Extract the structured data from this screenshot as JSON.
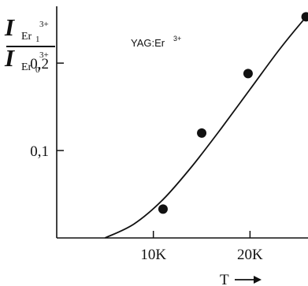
{
  "chart_data": {
    "type": "scatter",
    "title": "",
    "annotation": {
      "label": "YAG:Er",
      "superscript": "3+"
    },
    "xlabel": "T",
    "ylabel": {
      "numerator": {
        "symbol": "I",
        "sub": "Er",
        "sub_index": "1",
        "sup": "3+"
      },
      "denominator": {
        "symbol": "I",
        "sub": "Er",
        "sub_index": "0",
        "sup": "3+"
      }
    },
    "x_unit": "K",
    "x_ticks": [
      {
        "value": 10,
        "label": "10K"
      },
      {
        "value": 20,
        "label": "20K"
      }
    ],
    "y_ticks": [
      {
        "value": 0.1,
        "label": "0,1"
      },
      {
        "value": 0.2,
        "label": "0,2"
      }
    ],
    "xlim": [
      0,
      26
    ],
    "ylim": [
      0,
      0.265
    ],
    "grid": false,
    "series": [
      {
        "type": "scatter",
        "points": [
          {
            "x": 11.0,
            "y": 0.033
          },
          {
            "x": 15.0,
            "y": 0.12
          },
          {
            "x": 19.8,
            "y": 0.188
          },
          {
            "x": 25.8,
            "y": 0.253
          }
        ]
      },
      {
        "type": "line",
        "points": [
          {
            "x": 5.0,
            "y": 0.0
          },
          {
            "x": 8.0,
            "y": 0.016
          },
          {
            "x": 11.0,
            "y": 0.044
          },
          {
            "x": 14.0,
            "y": 0.082
          },
          {
            "x": 17.0,
            "y": 0.125
          },
          {
            "x": 20.0,
            "y": 0.17
          },
          {
            "x": 23.0,
            "y": 0.215
          },
          {
            "x": 25.5,
            "y": 0.249
          },
          {
            "x": 26.0,
            "y": 0.255
          }
        ]
      }
    ]
  }
}
